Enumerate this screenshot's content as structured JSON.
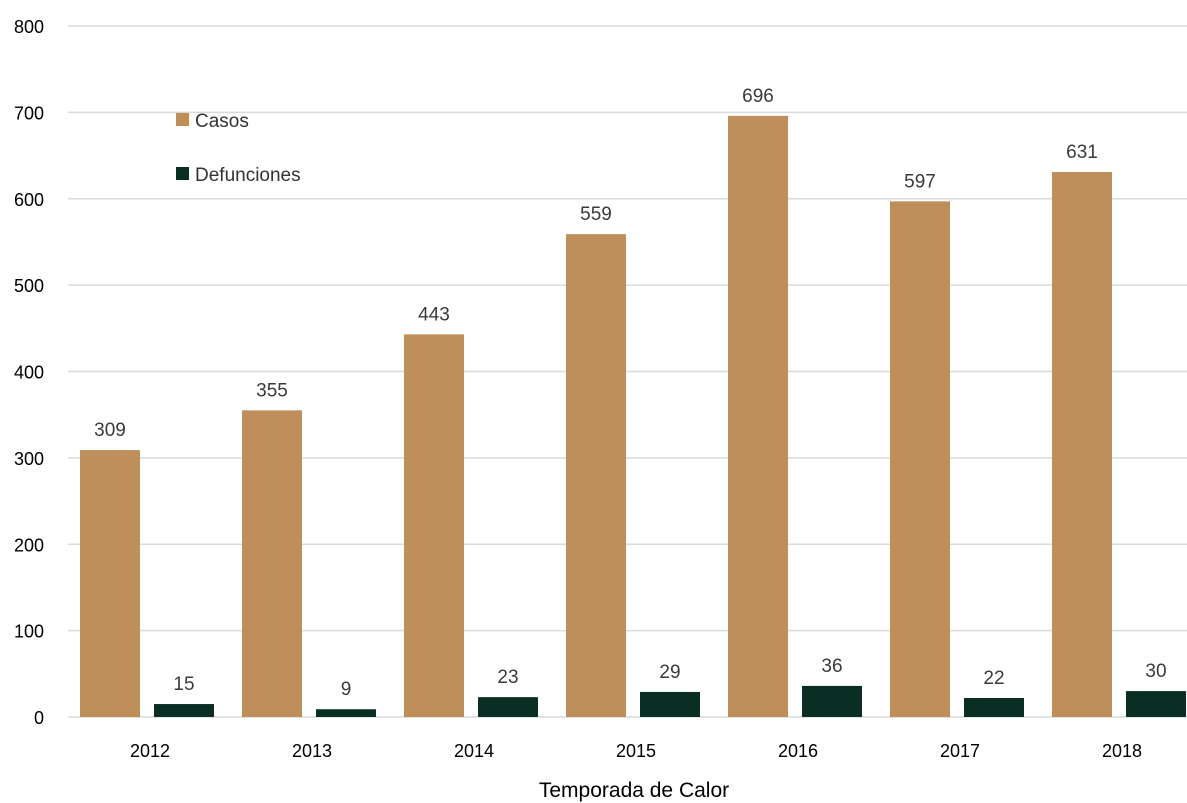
{
  "chart_data": {
    "type": "bar",
    "title": "",
    "xlabel": "Temporada de Calor",
    "ylabel": "",
    "ylim": [
      0,
      800
    ],
    "yticks": [
      0,
      100,
      200,
      300,
      400,
      500,
      600,
      700,
      800
    ],
    "categories": [
      "2012",
      "2013",
      "2014",
      "2015",
      "2016",
      "2017",
      "2018"
    ],
    "series": [
      {
        "name": "Casos",
        "color": "#BE8F5A",
        "values": [
          309,
          355,
          443,
          559,
          696,
          597,
          631
        ]
      },
      {
        "name": "Defunciones",
        "color": "#0B2E24",
        "values": [
          15,
          9,
          23,
          29,
          36,
          22,
          30
        ]
      }
    ],
    "grid": true,
    "legend_position": "top-left"
  }
}
